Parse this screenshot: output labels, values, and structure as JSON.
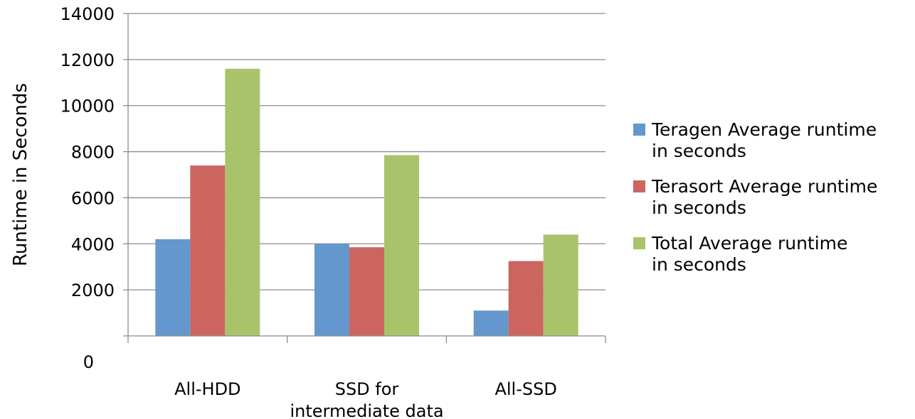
{
  "chart_data": {
    "type": "bar",
    "title": "",
    "xlabel": "",
    "ylabel": "Runtime in Seconds",
    "ylim": [
      0,
      14000
    ],
    "y_ticks": [
      0,
      2000,
      4000,
      6000,
      8000,
      10000,
      12000,
      14000
    ],
    "grid": true,
    "legend_position": "right",
    "categories": [
      [
        "All-HDD"
      ],
      [
        "SSD for",
        "intermediate data"
      ],
      [
        "All-SSD"
      ]
    ],
    "series": [
      {
        "name": [
          "Teragen Average runtime",
          "in seconds"
        ],
        "color": "#6497cd",
        "values": [
          4200,
          4000,
          1100
        ]
      },
      {
        "name": [
          "Terasort Average runtime",
          "in seconds"
        ],
        "color": "#cc6560",
        "values": [
          7400,
          3850,
          3250
        ]
      },
      {
        "name": [
          "Total Average runtime",
          "in seconds"
        ],
        "color": "#a9c36a",
        "values": [
          11600,
          7850,
          4400
        ]
      }
    ]
  }
}
